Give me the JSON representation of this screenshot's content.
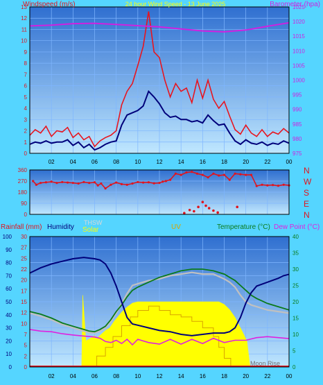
{
  "colors": {
    "background": "#55d5ff",
    "plot_top": "#2f6fd0",
    "plot_bottom": "#bfe7ff",
    "grid": "#7fb6ff",
    "wind_speed": "#e8141e",
    "wind_avg": "#00007a",
    "barometer": "#d020e0",
    "wind_dir": "#e0141e",
    "rain_axis": "#e0141e",
    "humidity": "#00007a",
    "solar": "#ffff00",
    "uv": "#d8a400",
    "temperature": "#0a7a1a",
    "thsw": "#c0c0c0",
    "dew_point": "#e020e0",
    "title": "#ffff00"
  },
  "chart_data": [
    {
      "type": "line",
      "title": "24 hour Wind Speed - 13 June 2025",
      "ylabel_left": "Windspeed (m/s)",
      "ylabel_right": "Barometer (hpa)",
      "x_ticks": [
        "02",
        "04",
        "06",
        "08",
        "10",
        "12",
        "14",
        "16",
        "18",
        "20",
        "22",
        "00"
      ],
      "xlim": [
        0,
        24
      ],
      "ylim_left": [
        0,
        13
      ],
      "ylim_right": [
        975,
        1025
      ],
      "left_ticks": [
        0,
        1,
        2,
        3,
        4,
        5,
        6,
        7,
        8,
        9,
        10,
        11,
        12,
        13
      ],
      "right_ticks": [
        975,
        980,
        985,
        990,
        995,
        1000,
        1005,
        1010,
        1015,
        1020,
        1025
      ],
      "grid": true,
      "series": [
        {
          "key": "gust",
          "axis": "left",
          "x": [
            0,
            0.5,
            1,
            1.5,
            2,
            2.5,
            3,
            3.5,
            4,
            4.5,
            5,
            5.5,
            6,
            6.5,
            7,
            7.5,
            8,
            8.5,
            9,
            9.5,
            10,
            10.5,
            11,
            11.5,
            12,
            12.5,
            13,
            13.5,
            14,
            14.5,
            15,
            15.5,
            16,
            16.5,
            17,
            17.5,
            18,
            18.5,
            19,
            19.5,
            20,
            20.5,
            21,
            21.5,
            22,
            22.5,
            23,
            23.5,
            24
          ],
          "values": [
            1.6,
            2.1,
            1.8,
            2.4,
            1.5,
            2.0,
            1.9,
            2.3,
            1.4,
            1.8,
            1.2,
            1.5,
            0.6,
            1.1,
            1.4,
            1.6,
            2.0,
            4.3,
            5.5,
            6.2,
            7.8,
            9.5,
            12.6,
            9.0,
            8.5,
            6.5,
            5.0,
            6.2,
            5.5,
            5.8,
            4.5,
            6.5,
            4.9,
            6.5,
            4.8,
            4.0,
            4.6,
            3.3,
            2.1,
            1.7,
            2.5,
            1.8,
            1.5,
            2.1,
            1.5,
            1.9,
            1.7,
            2.2,
            1.8
          ]
        },
        {
          "key": "average",
          "axis": "left",
          "x": [
            0,
            0.5,
            1,
            1.5,
            2,
            2.5,
            3,
            3.5,
            4,
            4.5,
            5,
            5.5,
            6,
            6.5,
            7,
            7.5,
            8,
            8.5,
            9,
            9.5,
            10,
            10.5,
            11,
            11.5,
            12,
            12.5,
            13,
            13.5,
            14,
            14.5,
            15,
            15.5,
            16,
            16.5,
            17,
            17.5,
            18,
            18.5,
            19,
            19.5,
            20,
            20.5,
            21,
            21.5,
            22,
            22.5,
            23,
            23.5,
            24
          ],
          "values": [
            0.8,
            1.0,
            0.9,
            1.1,
            0.9,
            1.0,
            1.0,
            1.2,
            0.7,
            1.0,
            0.5,
            0.8,
            0.3,
            0.5,
            0.8,
            1.0,
            1.1,
            2.5,
            3.4,
            3.6,
            3.8,
            4.2,
            5.5,
            5.0,
            4.4,
            3.6,
            3.2,
            3.3,
            3.0,
            3.0,
            2.8,
            2.9,
            2.7,
            3.4,
            2.9,
            2.5,
            2.6,
            1.8,
            1.1,
            0.8,
            1.2,
            0.9,
            0.8,
            1.0,
            0.7,
            0.9,
            0.8,
            1.1,
            0.9
          ]
        },
        {
          "key": "barometer",
          "axis": "right",
          "x": [
            0,
            2,
            4,
            6,
            8,
            10,
            12,
            14,
            16,
            18,
            20,
            22,
            24
          ],
          "values": [
            1018.5,
            1018.8,
            1019.3,
            1019.4,
            1019.0,
            1018.6,
            1018.2,
            1017.5,
            1016.8,
            1016.5,
            1017.1,
            1018.4,
            1019.6
          ]
        }
      ]
    },
    {
      "type": "scatter",
      "right_labels": [
        "N",
        "W",
        "S",
        "E",
        "N"
      ],
      "ylim": [
        0,
        360
      ],
      "left_ticks": [
        0,
        90,
        180,
        270,
        360
      ],
      "grid": true,
      "series": [
        {
          "key": "direction",
          "x": [
            0.3,
            0.6,
            1,
            1.5,
            2,
            2.5,
            3,
            3.5,
            4,
            4.5,
            5,
            5.5,
            6,
            6.3,
            6.6,
            7,
            7.5,
            8,
            8.5,
            9,
            9.5,
            10,
            10.5,
            11,
            11.5,
            12,
            12.3,
            12.6,
            13,
            13.5,
            14,
            14.5,
            15,
            15.5,
            16,
            16.5,
            17,
            17.5,
            18,
            18.5,
            19,
            19.5,
            20,
            20.5,
            21,
            21.5,
            22,
            22.5,
            23,
            23.5,
            24
          ],
          "values": [
            270,
            240,
            255,
            260,
            265,
            255,
            262,
            258,
            255,
            250,
            262,
            255,
            260,
            235,
            250,
            210,
            240,
            258,
            245,
            240,
            250,
            262,
            258,
            260,
            252,
            255,
            265,
            270,
            280,
            330,
            320,
            340,
            345,
            330,
            320,
            300,
            330,
            315,
            320,
            280,
            330,
            325,
            320,
            320,
            230,
            240,
            235,
            238,
            232,
            240,
            235
          ]
        },
        {
          "key": "low",
          "x": [
            14.3,
            14.8,
            15.2,
            15.6,
            16,
            16.3,
            16.6,
            17,
            17.4,
            19.2
          ],
          "values": [
            10,
            35,
            25,
            60,
            100,
            70,
            50,
            30,
            15,
            60
          ]
        }
      ]
    },
    {
      "type": "line",
      "ylabel_rain": "Rainfall (mm)",
      "ylabel_humidity": "Humidity",
      "label_thsw": "THSW",
      "label_solar": "Solar",
      "label_uv": "UV",
      "ylabel_temperature": "Temperature (°C)",
      "ylabel_dewpoint": "Dew Point (°C)",
      "annotation": "Moon Rise",
      "ylim_humidity": [
        0,
        100
      ],
      "humidity_ticks": [
        0,
        10,
        20,
        30,
        40,
        50,
        60,
        70,
        80,
        90,
        100
      ],
      "ylim_rain": [
        0,
        30
      ],
      "rain_ticks": [
        0,
        2.5,
        5,
        7.5,
        10,
        12.5,
        15,
        17.5,
        20,
        22.5,
        25,
        27.5,
        30
      ],
      "rain_tick_labels": [
        "0",
        "2",
        "5",
        "7",
        "10",
        "12",
        "15",
        "17",
        "20",
        "22",
        "25",
        "27",
        "30"
      ],
      "ylim_temp": [
        0,
        40
      ],
      "temp_ticks": [
        0,
        5,
        10,
        15,
        20,
        25,
        30,
        35,
        40
      ],
      "grid": true,
      "series": [
        {
          "key": "humidity",
          "axis": "humidity",
          "x": [
            0,
            1,
            2,
            3,
            4,
            5,
            6,
            6.5,
            7,
            7.5,
            8,
            8.5,
            9,
            9.5,
            10,
            11,
            12,
            13,
            14,
            15,
            16,
            17,
            18,
            18.5,
            19,
            19.5,
            20,
            20.5,
            21,
            22,
            23,
            23.5,
            24
          ],
          "values": [
            72,
            76,
            79,
            81,
            83,
            84,
            83,
            82,
            79,
            72,
            62,
            50,
            38,
            33,
            32,
            30,
            28,
            27,
            25,
            24,
            25,
            26,
            26,
            27,
            30,
            38,
            49,
            57,
            62,
            65,
            68,
            70,
            71
          ]
        },
        {
          "key": "temperature",
          "axis": "temp",
          "x": [
            0,
            1,
            2,
            3,
            4,
            5,
            5.5,
            6,
            6.5,
            7,
            7.5,
            8,
            8.5,
            9,
            9.5,
            10,
            11,
            12,
            13,
            14,
            15,
            16,
            17,
            18,
            18.5,
            19,
            19.5,
            20,
            20.5,
            21,
            22,
            23,
            24
          ],
          "values": [
            17,
            16.2,
            15,
            13.5,
            12.5,
            11.5,
            11,
            10.8,
            11.5,
            12.5,
            14.5,
            17,
            19,
            21.5,
            23.5,
            24.5,
            26,
            27.5,
            28.5,
            29.5,
            30,
            30,
            29.5,
            28.5,
            27.5,
            26.5,
            25,
            23.5,
            22,
            21,
            19.5,
            18.5,
            17.5
          ]
        },
        {
          "key": "thsw",
          "axis": "temp",
          "x": [
            0,
            1,
            2,
            3,
            4,
            5,
            5.5,
            6,
            6.5,
            7,
            7.5,
            8,
            8.5,
            9,
            9.5,
            10,
            11,
            12,
            13,
            14,
            15,
            16,
            17,
            18,
            18.5,
            19,
            19.5,
            20,
            20.5,
            21,
            22,
            23,
            24
          ],
          "values": [
            16.5,
            15.6,
            14.5,
            13,
            12,
            11,
            10.5,
            10.5,
            11,
            12,
            14,
            16.5,
            19.5,
            22.5,
            25,
            25.5,
            26.5,
            27,
            28,
            28.5,
            29,
            28.5,
            28.5,
            27,
            26,
            24.5,
            22,
            20,
            19,
            18.5,
            17.5,
            17,
            16.5
          ]
        },
        {
          "key": "dewpoint",
          "axis": "temp",
          "x": [
            0,
            1,
            2,
            3,
            4,
            5,
            6,
            6.5,
            7,
            7.5,
            8,
            8.5,
            9,
            9.5,
            10,
            11,
            12,
            13,
            14,
            15,
            16,
            17,
            18,
            19,
            20,
            21,
            22,
            23,
            24
          ],
          "values": [
            11.5,
            11,
            10.8,
            10.2,
            9.8,
            9.5,
            9.2,
            8.8,
            7.8,
            7.5,
            8.2,
            7.2,
            8.5,
            6.8,
            8.5,
            7.5,
            7.0,
            8.5,
            7.0,
            8.5,
            7.2,
            8.8,
            7.5,
            8.2,
            8.2,
            9.0,
            9.3,
            9.0,
            8.7
          ]
        },
        {
          "key": "solar",
          "axis": "humidity",
          "x": [
            4.8,
            4.9,
            5.2,
            5.6,
            6,
            6.2,
            6.6,
            7,
            7.4,
            7.8,
            8.1,
            8.5,
            9,
            9.5,
            10,
            11,
            12,
            13,
            14,
            15,
            16,
            17,
            17.5,
            18,
            18.5,
            19,
            19.5,
            20.1,
            20.4
          ],
          "values": [
            0,
            55,
            20,
            22,
            24,
            22,
            25,
            28,
            30,
            35,
            38,
            42,
            46,
            49,
            50,
            50,
            50,
            50,
            50,
            50,
            50,
            50,
            50,
            48,
            44,
            38,
            30,
            20,
            0
          ]
        },
        {
          "key": "uv_steps",
          "axis": "rain",
          "x": [
            6.2,
            7,
            7.7,
            8.5,
            9.3,
            10,
            11,
            12,
            13,
            14,
            15,
            16,
            17,
            17.5,
            18
          ],
          "values": [
            2.5,
            4.5,
            7,
            9.5,
            11.5,
            13,
            14,
            13,
            12,
            11.5,
            10.5,
            9,
            7,
            4.5,
            2
          ]
        }
      ]
    }
  ]
}
